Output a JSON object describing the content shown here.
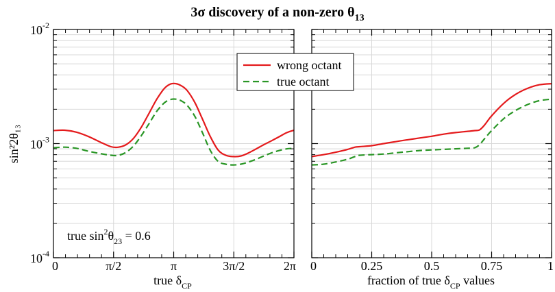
{
  "figure": {
    "title": "3σ discovery of a non-zero θ",
    "title_sub": "13"
  },
  "colors": {
    "wrong": "#e41a1c",
    "true": "#2a9626",
    "grid": "#d8d8d8",
    "axis": "#000000"
  },
  "chart_data": [
    {
      "type": "line",
      "panel": "left",
      "xlabel": "true δ",
      "xlabel_sub": "CP",
      "ylabel": "sin²2θ₁₃",
      "yscale": "log",
      "ylim": [
        0.0001,
        0.01
      ],
      "xlim": [
        0,
        6.2832
      ],
      "grid": true,
      "x_ticks": [
        {
          "value": 0,
          "label": "0"
        },
        {
          "value": 1.5708,
          "label": "π/2"
        },
        {
          "value": 3.1416,
          "label": "π"
        },
        {
          "value": 4.7124,
          "label": "3π/2"
        },
        {
          "value": 6.2832,
          "label": "2π"
        }
      ],
      "y_ticks": [
        {
          "value": 0.01,
          "base": "10",
          "exp": "-2"
        },
        {
          "value": 0.001,
          "base": "10",
          "exp": "-3"
        },
        {
          "value": 0.0001,
          "base": "10",
          "exp": "-4"
        }
      ],
      "annotation": {
        "prefix": "true  sin",
        "sup": "2",
        "mid": "θ",
        "sub": "23",
        "suffix": " = 0.6"
      },
      "series": [
        {
          "name": "wrong octant",
          "style": "solid",
          "x": [
            0,
            0.3,
            0.6,
            0.9,
            1.2,
            1.5,
            1.7,
            1.9,
            2.1,
            2.3,
            2.5,
            2.7,
            2.9,
            3.05,
            3.2,
            3.35,
            3.5,
            3.7,
            3.9,
            4.1,
            4.3,
            4.5,
            4.7,
            4.9,
            5.1,
            5.3,
            5.5,
            5.7,
            5.9,
            6.1,
            6.2832
          ],
          "y": [
            0.0013,
            0.00131,
            0.00126,
            0.00116,
            0.00104,
            0.00094,
            0.00093,
            0.00098,
            0.00112,
            0.0014,
            0.00185,
            0.00245,
            0.00305,
            0.00332,
            0.00335,
            0.0032,
            0.0029,
            0.00227,
            0.00162,
            0.00115,
            0.00088,
            0.00079,
            0.00077,
            0.00078,
            0.00083,
            0.0009,
            0.00098,
            0.00106,
            0.00115,
            0.00125,
            0.00131
          ]
        },
        {
          "name": "true octant",
          "style": "dashed",
          "x": [
            0,
            0.3,
            0.6,
            0.9,
            1.2,
            1.5,
            1.7,
            1.9,
            2.1,
            2.3,
            2.5,
            2.7,
            2.9,
            3.05,
            3.2,
            3.35,
            3.5,
            3.7,
            3.9,
            4.1,
            4.3,
            4.5,
            4.7,
            4.9,
            5.1,
            5.3,
            5.5,
            5.7,
            5.9,
            6.1,
            6.2832
          ],
          "y": [
            0.00092,
            0.00093,
            0.00091,
            0.00086,
            0.00082,
            0.00079,
            0.00079,
            0.00084,
            0.00096,
            0.00118,
            0.0015,
            0.00192,
            0.00228,
            0.00243,
            0.00245,
            0.00236,
            0.00215,
            0.00172,
            0.00123,
            0.00087,
            0.0007,
            0.00066,
            0.00065,
            0.00066,
            0.00069,
            0.00073,
            0.00078,
            0.00083,
            0.00087,
            0.0009,
            0.00091
          ]
        }
      ]
    },
    {
      "type": "line",
      "panel": "right",
      "xlabel": "fraction of true δ",
      "xlabel_sub": "CP",
      "xlabel_suffix": " values",
      "yscale": "log",
      "ylim": [
        0.0001,
        0.01
      ],
      "xlim": [
        0,
        1
      ],
      "grid": true,
      "x_ticks": [
        {
          "value": 0,
          "label": "0"
        },
        {
          "value": 0.25,
          "label": "0.25"
        },
        {
          "value": 0.5,
          "label": "0.5"
        },
        {
          "value": 0.75,
          "label": "0.75"
        },
        {
          "value": 1,
          "label": "1"
        }
      ],
      "legend": {
        "placement": "top-left",
        "entries": [
          "wrong octant",
          "true octant"
        ]
      },
      "series": [
        {
          "name": "wrong octant",
          "style": "solid",
          "x": [
            0,
            0.05,
            0.1,
            0.15,
            0.18,
            0.2,
            0.25,
            0.3,
            0.35,
            0.4,
            0.45,
            0.5,
            0.55,
            0.6,
            0.65,
            0.68,
            0.7,
            0.72,
            0.75,
            0.8,
            0.85,
            0.9,
            0.95,
            1.0
          ],
          "y": [
            0.00077,
            0.0008,
            0.00084,
            0.00089,
            0.00093,
            0.00094,
            0.00096,
            0.001,
            0.00104,
            0.00108,
            0.00112,
            0.00116,
            0.00121,
            0.00125,
            0.00128,
            0.0013,
            0.00132,
            0.00145,
            0.00175,
            0.00225,
            0.0027,
            0.00305,
            0.00328,
            0.00335
          ]
        },
        {
          "name": "true octant",
          "style": "dashed",
          "x": [
            0,
            0.05,
            0.1,
            0.15,
            0.18,
            0.2,
            0.25,
            0.3,
            0.35,
            0.4,
            0.45,
            0.5,
            0.55,
            0.6,
            0.65,
            0.68,
            0.7,
            0.72,
            0.75,
            0.8,
            0.85,
            0.9,
            0.95,
            1.0
          ],
          "y": [
            0.00065,
            0.00066,
            0.00069,
            0.00073,
            0.00077,
            0.00079,
            0.0008,
            0.00081,
            0.00083,
            0.00085,
            0.00087,
            0.00088,
            0.00089,
            0.0009,
            0.00091,
            0.00092,
            0.00098,
            0.0011,
            0.0013,
            0.00165,
            0.00195,
            0.0022,
            0.00238,
            0.00245
          ]
        }
      ]
    }
  ]
}
